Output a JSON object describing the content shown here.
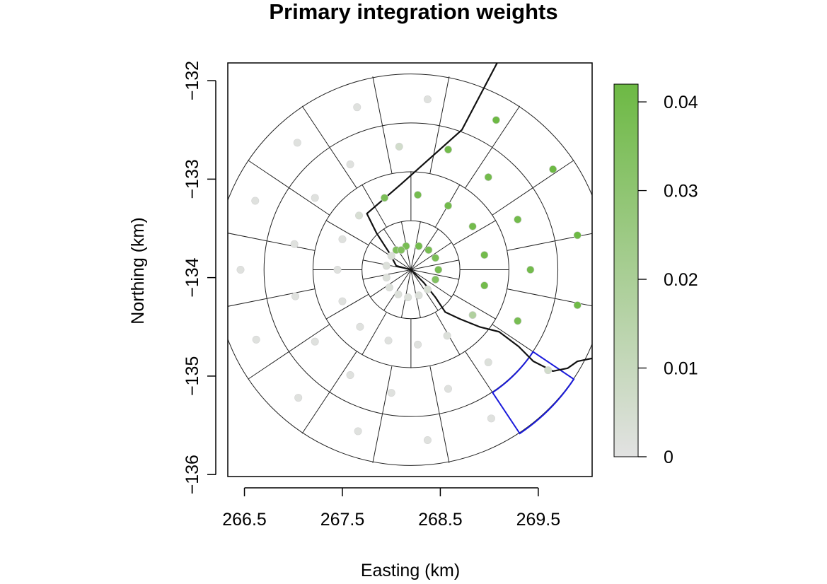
{
  "chart_data": {
    "type": "scatter",
    "title": "Primary integration weights",
    "xlabel": "Easting (km)",
    "ylabel": "Northing (km)",
    "xlim": [
      266.33,
      270.05
    ],
    "ylim": [
      -136.02,
      -131.82
    ],
    "x_ticks": [
      266.5,
      267.5,
      268.5,
      269.5
    ],
    "x_tick_labels": [
      "266.5",
      "267.5",
      "268.5",
      "269.5"
    ],
    "y_ticks": [
      -132,
      -133,
      -134,
      -135,
      -136
    ],
    "y_tick_labels": [
      "−132",
      "−133",
      "−134",
      "−135",
      "−136"
    ],
    "grid": {
      "center": [
        268.2,
        -133.92
      ],
      "ring_radii_km": [
        0.5,
        1.0,
        1.5,
        2.0
      ],
      "sectors_per_ring": [
        16,
        12,
        16,
        16
      ]
    },
    "highlight_color": "#1a1adb",
    "highlight_cell": {
      "ring": 4,
      "sector": 14
    },
    "boundary_line": [
      [
        269.08,
        -131.82
      ],
      [
        268.72,
        -132.5
      ],
      [
        268.1,
        -133.05
      ],
      [
        267.75,
        -133.35
      ],
      [
        267.85,
        -133.55
      ],
      [
        267.98,
        -133.75
      ],
      [
        268.05,
        -133.88
      ],
      [
        268.2,
        -133.92
      ],
      [
        268.33,
        -134.05
      ],
      [
        268.45,
        -134.2
      ],
      [
        268.55,
        -134.35
      ],
      [
        268.7,
        -134.42
      ],
      [
        268.9,
        -134.5
      ],
      [
        269.1,
        -134.55
      ],
      [
        269.3,
        -134.7
      ],
      [
        269.45,
        -134.85
      ],
      [
        269.65,
        -134.95
      ],
      [
        269.8,
        -134.92
      ],
      [
        269.9,
        -134.85
      ],
      [
        270.05,
        -134.82
      ]
    ],
    "colorbar": {
      "label_ticks": [
        0,
        0.01,
        0.02,
        0.03,
        0.04
      ],
      "tick_labels": [
        "0",
        "0.01",
        "0.02",
        "0.03",
        "0.04"
      ],
      "min": 0,
      "max": 0.042,
      "color_low": "#e2e2e2",
      "color_high": "#6db944"
    },
    "points": [
      {
        "x": 268.05,
        "y": -133.72,
        "w": 0.036
      },
      {
        "x": 268.15,
        "y": -133.68,
        "w": 0.038
      },
      {
        "x": 268.28,
        "y": -133.68,
        "w": 0.039
      },
      {
        "x": 268.38,
        "y": -133.72,
        "w": 0.038
      },
      {
        "x": 268.45,
        "y": -133.8,
        "w": 0.037
      },
      {
        "x": 268.48,
        "y": -133.92,
        "w": 0.038
      },
      {
        "x": 268.45,
        "y": -134.02,
        "w": 0.034
      },
      {
        "x": 268.37,
        "y": -134.12,
        "w": 0.004
      },
      {
        "x": 268.28,
        "y": -134.18,
        "w": 0.002
      },
      {
        "x": 268.17,
        "y": -134.2,
        "w": 0.002
      },
      {
        "x": 268.07,
        "y": -134.17,
        "w": 0.002
      },
      {
        "x": 267.98,
        "y": -134.1,
        "w": 0.002
      },
      {
        "x": 267.95,
        "y": -134.0,
        "w": 0.002
      },
      {
        "x": 267.95,
        "y": -133.88,
        "w": 0.002
      },
      {
        "x": 268.0,
        "y": -133.78,
        "w": 0.003
      },
      {
        "x": 268.1,
        "y": -133.72,
        "w": 0.035
      },
      {
        "x": 268.27,
        "y": -133.16,
        "w": 0.039
      },
      {
        "x": 268.58,
        "y": -133.27,
        "w": 0.04
      },
      {
        "x": 268.83,
        "y": -133.48,
        "w": 0.04
      },
      {
        "x": 268.95,
        "y": -133.77,
        "w": 0.04
      },
      {
        "x": 268.95,
        "y": -134.08,
        "w": 0.04
      },
      {
        "x": 268.83,
        "y": -134.38,
        "w": 0.018
      },
      {
        "x": 268.57,
        "y": -134.59,
        "w": 0.002
      },
      {
        "x": 268.27,
        "y": -134.68,
        "w": 0.001
      },
      {
        "x": 267.97,
        "y": -134.64,
        "w": 0.001
      },
      {
        "x": 267.68,
        "y": -134.5,
        "w": 0.001
      },
      {
        "x": 267.5,
        "y": -134.24,
        "w": 0.001
      },
      {
        "x": 267.45,
        "y": -133.92,
        "w": 0.001
      },
      {
        "x": 267.5,
        "y": -133.61,
        "w": 0.001
      },
      {
        "x": 267.67,
        "y": -133.37,
        "w": 0.004
      },
      {
        "x": 267.93,
        "y": -133.19,
        "w": 0.037
      },
      {
        "x": 268.58,
        "y": -132.7,
        "w": 0.04
      },
      {
        "x": 268.99,
        "y": -132.98,
        "w": 0.04
      },
      {
        "x": 269.29,
        "y": -133.41,
        "w": 0.04
      },
      {
        "x": 269.42,
        "y": -133.92,
        "w": 0.04
      },
      {
        "x": 269.29,
        "y": -134.44,
        "w": 0.038
      },
      {
        "x": 268.99,
        "y": -134.86,
        "w": 0.002
      },
      {
        "x": 268.58,
        "y": -135.13,
        "w": 0.001
      },
      {
        "x": 268.0,
        "y": -135.17,
        "w": 0.001
      },
      {
        "x": 267.58,
        "y": -134.99,
        "w": 0.001
      },
      {
        "x": 267.22,
        "y": -134.65,
        "w": 0.001
      },
      {
        "x": 267.02,
        "y": -134.19,
        "w": 0.001
      },
      {
        "x": 267.01,
        "y": -133.66,
        "w": 0.001
      },
      {
        "x": 267.22,
        "y": -133.19,
        "w": 0.001
      },
      {
        "x": 267.58,
        "y": -132.85,
        "w": 0.001
      },
      {
        "x": 268.08,
        "y": -132.67,
        "w": 0.006
      },
      {
        "x": 268.37,
        "y": -132.19,
        "w": 0.001
      },
      {
        "x": 269.07,
        "y": -132.4,
        "w": 0.042
      },
      {
        "x": 269.65,
        "y": -132.9,
        "w": 0.042
      },
      {
        "x": 269.9,
        "y": -133.57,
        "w": 0.042
      },
      {
        "x": 269.9,
        "y": -134.28,
        "w": 0.041
      },
      {
        "x": 269.6,
        "y": -134.94,
        "w": 0.006
      },
      {
        "x": 269.02,
        "y": -135.43,
        "w": 0.001
      },
      {
        "x": 268.37,
        "y": -135.65,
        "w": 0.001
      },
      {
        "x": 267.66,
        "y": -135.56,
        "w": 0.001
      },
      {
        "x": 267.05,
        "y": -135.22,
        "w": 0.001
      },
      {
        "x": 266.62,
        "y": -134.63,
        "w": 0.001
      },
      {
        "x": 266.46,
        "y": -133.92,
        "w": 0.001
      },
      {
        "x": 266.61,
        "y": -133.22,
        "w": 0.001
      },
      {
        "x": 267.04,
        "y": -132.63,
        "w": 0.001
      },
      {
        "x": 267.65,
        "y": -132.27,
        "w": 0.001
      }
    ]
  }
}
